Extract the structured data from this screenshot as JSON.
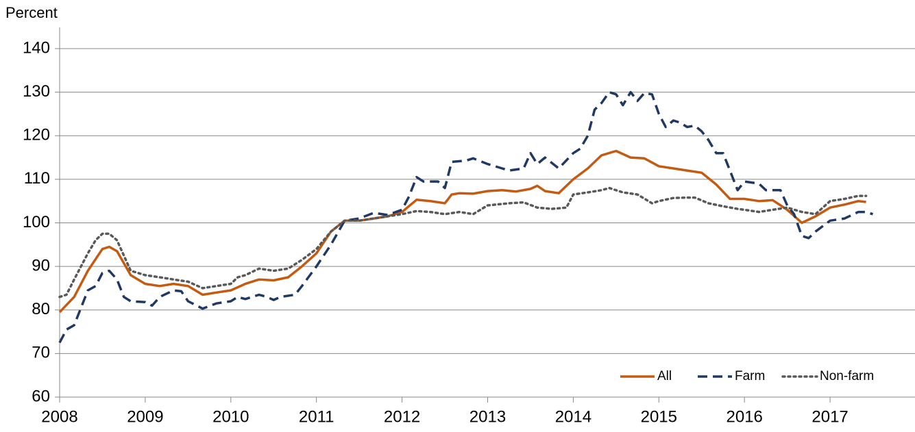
{
  "chart_data": {
    "type": "line",
    "ylabel": "Percent",
    "xlim": [
      2008,
      2018
    ],
    "xticks": [
      2008,
      2009,
      2010,
      2011,
      2012,
      2013,
      2014,
      2015,
      2016,
      2017
    ],
    "ylim": [
      60,
      140
    ],
    "yticks": [
      60,
      70,
      80,
      90,
      100,
      110,
      120,
      130,
      140
    ],
    "grid": true,
    "legend": "lower right",
    "series": [
      {
        "name": "All",
        "color": "#c55a11",
        "style": "solid",
        "x": [
          2008.0,
          2008.17,
          2008.33,
          2008.5,
          2008.58,
          2008.67,
          2008.83,
          2009.0,
          2009.17,
          2009.33,
          2009.5,
          2009.67,
          2009.83,
          2010.0,
          2010.17,
          2010.33,
          2010.5,
          2010.67,
          2010.83,
          2011.0,
          2011.17,
          2011.33,
          2011.5,
          2011.67,
          2011.83,
          2012.0,
          2012.17,
          2012.33,
          2012.5,
          2012.58,
          2012.67,
          2012.83,
          2013.0,
          2013.17,
          2013.33,
          2013.5,
          2013.58,
          2013.67,
          2013.83,
          2014.0,
          2014.17,
          2014.33,
          2014.5,
          2014.67,
          2014.83,
          2015.0,
          2015.17,
          2015.33,
          2015.5,
          2015.67,
          2015.83,
          2016.0,
          2016.17,
          2016.33,
          2016.5,
          2016.67,
          2016.83,
          2017.0,
          2017.17,
          2017.33,
          2017.42
        ],
        "values": [
          79.5,
          83,
          89,
          94,
          94.5,
          93.5,
          88,
          86,
          85.5,
          86,
          85.5,
          83.5,
          84,
          84.5,
          86,
          87,
          86.8,
          87.5,
          90,
          93,
          98,
          100.5,
          100.5,
          101,
          101.5,
          102.5,
          105.3,
          105,
          104.5,
          106.5,
          106.8,
          106.7,
          107.3,
          107.5,
          107.2,
          107.8,
          108.5,
          107.3,
          106.8,
          110,
          112.5,
          115.5,
          116.5,
          115,
          114.8,
          113,
          112.5,
          112,
          111.5,
          108.8,
          105.5,
          105.5,
          105,
          105.2,
          103,
          100,
          101.5,
          103.5,
          104.2,
          105,
          104.8
        ]
      },
      {
        "name": "Farm",
        "color": "#1f3864",
        "style": "dashed",
        "x": [
          2008.0,
          2008.08,
          2008.17,
          2008.33,
          2008.42,
          2008.5,
          2008.58,
          2008.67,
          2008.75,
          2008.83,
          2009.0,
          2009.08,
          2009.17,
          2009.33,
          2009.42,
          2009.5,
          2009.67,
          2009.83,
          2010.0,
          2010.08,
          2010.17,
          2010.33,
          2010.42,
          2010.5,
          2010.58,
          2010.75,
          2010.83,
          2011.0,
          2011.17,
          2011.33,
          2011.5,
          2011.67,
          2011.83,
          2012.0,
          2012.08,
          2012.17,
          2012.25,
          2012.42,
          2012.5,
          2012.58,
          2012.75,
          2012.83,
          2013.0,
          2013.17,
          2013.25,
          2013.42,
          2013.5,
          2013.58,
          2013.67,
          2013.83,
          2014.0,
          2014.08,
          2014.17,
          2014.25,
          2014.33,
          2014.42,
          2014.5,
          2014.58,
          2014.67,
          2014.75,
          2014.83,
          2014.92,
          2015.0,
          2015.08,
          2015.17,
          2015.25,
          2015.33,
          2015.42,
          2015.5,
          2015.58,
          2015.67,
          2015.75,
          2015.83,
          2015.92,
          2016.0,
          2016.17,
          2016.25,
          2016.33,
          2016.42,
          2016.5,
          2016.58,
          2016.67,
          2016.75,
          2016.83,
          2017.0,
          2017.17,
          2017.33,
          2017.42,
          2017.5
        ],
        "values": [
          72.5,
          75.5,
          76.5,
          84.5,
          85.5,
          88.5,
          89,
          87,
          83,
          82,
          81.8,
          81,
          83,
          84.5,
          84.3,
          82,
          80.3,
          81.5,
          82,
          83,
          82.5,
          83.5,
          83,
          82.3,
          83,
          83.5,
          85.5,
          90,
          95,
          100.5,
          101,
          102.3,
          101.8,
          103,
          106,
          110.5,
          109.5,
          109.5,
          108,
          114,
          114.3,
          114.8,
          113.5,
          112.5,
          112,
          112.5,
          116,
          113.5,
          115,
          112.5,
          116,
          117,
          120,
          126,
          127.5,
          130,
          129.5,
          127,
          130,
          128,
          129.8,
          129.5,
          125,
          122,
          123.5,
          123,
          122,
          122.3,
          121,
          119,
          116,
          116,
          112,
          107.5,
          109.5,
          109,
          107.5,
          107.5,
          107.5,
          104,
          102,
          97,
          96.5,
          98,
          100.5,
          101,
          102.5,
          102.5,
          102
        ]
      },
      {
        "name": "Non-farm",
        "color": "#595959",
        "style": "dotted",
        "x": [
          2008.0,
          2008.08,
          2008.17,
          2008.33,
          2008.42,
          2008.5,
          2008.58,
          2008.67,
          2008.83,
          2009.0,
          2009.17,
          2009.33,
          2009.5,
          2009.67,
          2009.83,
          2010.0,
          2010.08,
          2010.17,
          2010.33,
          2010.5,
          2010.67,
          2010.83,
          2011.0,
          2011.17,
          2011.33,
          2011.5,
          2011.67,
          2011.83,
          2012.0,
          2012.17,
          2012.33,
          2012.5,
          2012.67,
          2012.83,
          2013.0,
          2013.25,
          2013.42,
          2013.58,
          2013.75,
          2013.92,
          2014.0,
          2014.17,
          2014.33,
          2014.42,
          2014.58,
          2014.75,
          2014.92,
          2015.0,
          2015.17,
          2015.33,
          2015.42,
          2015.58,
          2015.75,
          2015.92,
          2016.0,
          2016.17,
          2016.33,
          2016.5,
          2016.67,
          2016.83,
          2017.0,
          2017.17,
          2017.33,
          2017.42
        ],
        "values": [
          83,
          83.5,
          87,
          93,
          96,
          97.5,
          97.5,
          96,
          89,
          88,
          87.5,
          87,
          86.5,
          85,
          85.5,
          86,
          87.5,
          88,
          89.5,
          89,
          89.5,
          91.5,
          94,
          98,
          100.5,
          100.5,
          101,
          101.5,
          102,
          102.7,
          102.5,
          102,
          102.5,
          102,
          104,
          104.5,
          104.7,
          103.5,
          103.2,
          103.5,
          106.5,
          107,
          107.5,
          108,
          107,
          106.5,
          104.5,
          105,
          105.7,
          105.8,
          105.8,
          104.5,
          103.8,
          103.2,
          103,
          102.5,
          103,
          103.5,
          102.5,
          102,
          105,
          105.5,
          106.2,
          106.2
        ]
      }
    ]
  }
}
